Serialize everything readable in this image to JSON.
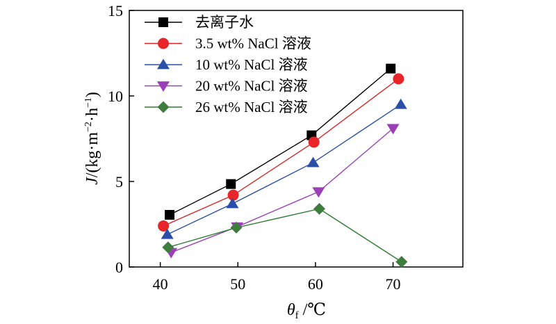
{
  "chart_data": {
    "type": "line",
    "xlabel": "θf /℃",
    "xlabel_main": "θ",
    "xlabel_sub": "f",
    "xlabel_unit": " /℃",
    "ylabel": "J/(kg·m−2·h−1)",
    "ylabel_var": "J",
    "ylabel_unit_a": "/(kg·m",
    "ylabel_exp_a": "−2",
    "ylabel_unit_b": "·h",
    "ylabel_exp_b": "−1",
    "ylabel_close": ")",
    "xlim": [
      36,
      79
    ],
    "ylim": [
      0,
      15
    ],
    "xticks": [
      40,
      50,
      60,
      70
    ],
    "yticks": [
      0,
      5,
      10,
      15
    ],
    "grid": false,
    "legend_position": "top-left",
    "series": [
      {
        "name": "去离子水",
        "marker": "square",
        "color": "#000000",
        "line_color": "#000000",
        "x": [
          41.2,
          49.1,
          59.5,
          69.7
        ],
        "y": [
          3.05,
          4.85,
          7.7,
          11.6
        ]
      },
      {
        "name": "3.5 wt% NaCl 溶液",
        "marker": "circle",
        "color": "#e8262a",
        "line_color": "#d62728",
        "x": [
          40.4,
          49.4,
          59.8,
          70.7
        ],
        "y": [
          2.4,
          4.2,
          7.3,
          11.0
        ]
      },
      {
        "name": "10 wt% NaCl 溶液",
        "marker": "triangle-up",
        "color": "#2a4fa8",
        "line_color": "#2a4fa8",
        "x": [
          40.9,
          49.3,
          59.7,
          71.0
        ],
        "y": [
          1.9,
          3.7,
          6.1,
          9.5
        ]
      },
      {
        "name": "20 wt% NaCl 溶液",
        "marker": "triangle-down",
        "color": "#9b3fb5",
        "line_color": "#9b3fb5",
        "x": [
          41.4,
          49.9,
          60.4,
          70.0
        ],
        "y": [
          0.85,
          2.35,
          4.4,
          8.1
        ]
      },
      {
        "name": "26 wt% NaCl 溶液",
        "marker": "diamond",
        "color": "#3e7d3e",
        "line_color": "#2e7d32",
        "x": [
          41.0,
          49.8,
          60.5,
          71.1
        ],
        "y": [
          1.15,
          2.3,
          3.4,
          0.3
        ]
      }
    ]
  }
}
